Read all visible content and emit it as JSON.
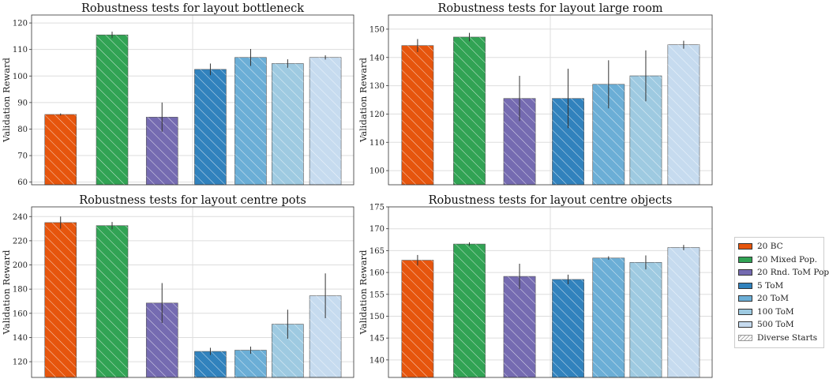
{
  "chart_data": [
    {
      "type": "bar",
      "title": "Robustness tests for layout bottleneck",
      "ylabel": "Validation Reward",
      "ylim": [
        59,
        123
      ],
      "yticks": [
        60,
        70,
        80,
        90,
        100,
        110,
        120
      ],
      "grid": true,
      "series": [
        {
          "name": "20 BC",
          "value": 85.5,
          "error": 0.4
        },
        {
          "name": "20 Mixed Pop.",
          "value": 115.5,
          "error": 1.2
        },
        {
          "name": "20 Rnd. ToM Pop.",
          "value": 84.5,
          "error": 5.5
        },
        {
          "name": "5 ToM",
          "value": 102.5,
          "error": 2.2
        },
        {
          "name": "20 ToM",
          "value": 107.0,
          "error": 3.2
        },
        {
          "name": "100 ToM",
          "value": 104.7,
          "error": 1.6
        },
        {
          "name": "500 ToM",
          "value": 107.0,
          "error": 0.8
        }
      ]
    },
    {
      "type": "bar",
      "title": "Robustness tests for layout large room",
      "ylabel": "Validation Reward",
      "ylim": [
        95,
        155
      ],
      "yticks": [
        100,
        110,
        120,
        130,
        140,
        150
      ],
      "grid": true,
      "series": [
        {
          "name": "20 BC",
          "value": 144.2,
          "error": 2.3
        },
        {
          "name": "20 Mixed Pop.",
          "value": 147.2,
          "error": 1.5
        },
        {
          "name": "20 Rnd. ToM Pop.",
          "value": 125.5,
          "error": 8.0
        },
        {
          "name": "5 ToM",
          "value": 125.5,
          "error": 10.5
        },
        {
          "name": "20 ToM",
          "value": 130.5,
          "error": 8.5
        },
        {
          "name": "100 ToM",
          "value": 133.5,
          "error": 9.0
        },
        {
          "name": "500 ToM",
          "value": 144.5,
          "error": 1.4
        }
      ]
    },
    {
      "type": "bar",
      "title": "Robustness tests for layout centre pots",
      "ylabel": "Validation Reward",
      "ylim": [
        107,
        248
      ],
      "yticks": [
        120,
        140,
        160,
        180,
        200,
        220,
        240
      ],
      "grid": true,
      "series": [
        {
          "name": "20 BC",
          "value": 235.0,
          "error": 5.0
        },
        {
          "name": "20 Mixed Pop.",
          "value": 232.5,
          "error": 3.0
        },
        {
          "name": "20 Rnd. ToM Pop.",
          "value": 168.5,
          "error": 16.5
        },
        {
          "name": "5 ToM",
          "value": 128.5,
          "error": 3.0
        },
        {
          "name": "20 ToM",
          "value": 129.5,
          "error": 3.0
        },
        {
          "name": "100 ToM",
          "value": 151.0,
          "error": 12.0
        },
        {
          "name": "500 ToM",
          "value": 174.5,
          "error": 18.5
        }
      ]
    },
    {
      "type": "bar",
      "title": "Robustness tests for layout centre objects",
      "ylabel": "Validation Reward",
      "ylim": [
        136,
        175
      ],
      "yticks": [
        140,
        145,
        150,
        155,
        160,
        165,
        170,
        175
      ],
      "grid": true,
      "series": [
        {
          "name": "20 BC",
          "value": 162.8,
          "error": 1.2
        },
        {
          "name": "20 Mixed Pop.",
          "value": 166.5,
          "error": 0.4
        },
        {
          "name": "20 Rnd. ToM Pop.",
          "value": 159.1,
          "error": 2.9
        },
        {
          "name": "5 ToM",
          "value": 158.4,
          "error": 1.1
        },
        {
          "name": "20 ToM",
          "value": 163.3,
          "error": 0.4
        },
        {
          "name": "100 ToM",
          "value": 162.3,
          "error": 1.6
        },
        {
          "name": "500 ToM",
          "value": 165.7,
          "error": 0.6
        }
      ]
    }
  ],
  "legend": [
    {
      "label": "20 BC",
      "color": "#e6550d",
      "hatched": true
    },
    {
      "label": "20 Mixed Pop.",
      "color": "#31a354",
      "hatched": true
    },
    {
      "label": "20 Rnd. ToM Pop.",
      "color": "#756bb1",
      "hatched": true
    },
    {
      "label": "5 ToM",
      "color": "#3182bd",
      "hatched": true
    },
    {
      "label": "20 ToM",
      "color": "#6baed6",
      "hatched": true
    },
    {
      "label": "100 ToM",
      "color": "#9ecae1",
      "hatched": true
    },
    {
      "label": "500 ToM",
      "color": "#c6dbef",
      "hatched": true
    },
    {
      "label": "Diverse Starts",
      "color": "#ffffff",
      "hatched": true,
      "hatch_only": true
    }
  ]
}
